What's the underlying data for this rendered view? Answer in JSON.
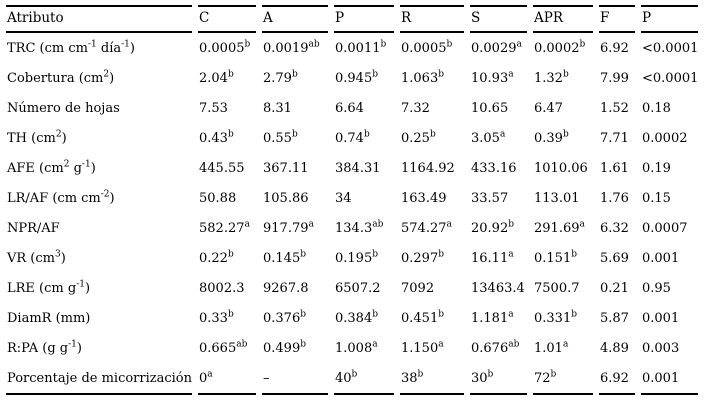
{
  "table": {
    "columns": [
      "Atributo",
      "C",
      "A",
      "P",
      "R",
      "S",
      "APR",
      "F",
      "P"
    ],
    "rows": [
      [
        "TRC (cm cm^{-1} día^{-1})",
        "0.0005^{b}",
        "0.0019^{ab}",
        "0.0011^{b}",
        "0.0005^{b}",
        "0.0029^{a}",
        "0.0002^{b}",
        "6.92",
        "<0.0001"
      ],
      [
        "Cobertura (cm^{2})",
        "2.04^{b}",
        "2.79^{b}",
        "0.945^{b}",
        "1.063^{b}",
        "10.93^{a}",
        "1.32^{b}",
        "7.99",
        "<0.0001"
      ],
      [
        "Número de hojas",
        "7.53",
        "8.31",
        "6.64",
        "7.32",
        "10.65",
        "6.47",
        "1.52",
        "0.18"
      ],
      [
        "TH (cm^{2})",
        "0.43^{b}",
        "0.55^{b}",
        "0.74^{b}",
        "0.25^{b}",
        "3.05^{a}",
        "0.39^{b}",
        "7.71",
        "0.0002"
      ],
      [
        "AFE (cm^{2} g^{-1})",
        "445.55",
        "367.11",
        "384.31",
        "1164.92",
        "433.16",
        "1010.06",
        "1.61",
        "0.19"
      ],
      [
        "LR/AF (cm cm^{-2})",
        "50.88",
        "105.86",
        "34",
        "163.49",
        "33.57",
        "113.01",
        "1.76",
        "0.15"
      ],
      [
        "NPR/AF",
        "582.27^{a}",
        "917.79^{a}",
        "134.3^{ab}",
        "574.27^{a}",
        "20.92^{b}",
        "291.69^{a}",
        "6.32",
        "0.0007"
      ],
      [
        "VR (cm^{3})",
        "0.22^{b}",
        "0.145^{b}",
        "0.195^{b}",
        "0.297^{b}",
        "16.11^{a}",
        "0.151^{b}",
        "5.69",
        "0.001"
      ],
      [
        "LRE (cm g^{-1})",
        "8002.3",
        "9267.8",
        "6507.2",
        "7092",
        "13463.4",
        "7500.7",
        "0.21",
        "0.95"
      ],
      [
        "DiamR (mm)",
        "0.33^{b}",
        "0.376^{b}",
        "0.384^{b}",
        "0.451^{b}",
        "1.181^{a}",
        "0.331^{b}",
        "5.87",
        "0.001"
      ],
      [
        "R:PA (g g^{-1})",
        "0.665^{ab}",
        "0.499^{b}",
        "1.008^{a}",
        "1.150^{a}",
        "0.676^{ab}",
        "1.01^{a}",
        "4.89",
        "0.003"
      ],
      [
        "Porcentaje de micorrización",
        "0^{a}",
        "–",
        "40^{b}",
        "38^{b}",
        "30^{b}",
        "72^{b}",
        "6.92",
        "0.001"
      ]
    ]
  },
  "chart_data": {
    "type": "table",
    "title": "",
    "columns": [
      "Atributo",
      "C",
      "A",
      "P",
      "R",
      "S",
      "APR",
      "F",
      "P"
    ]
  },
  "colors": {
    "text": "#000000",
    "rule": "#000000",
    "background": "#ffffff"
  }
}
